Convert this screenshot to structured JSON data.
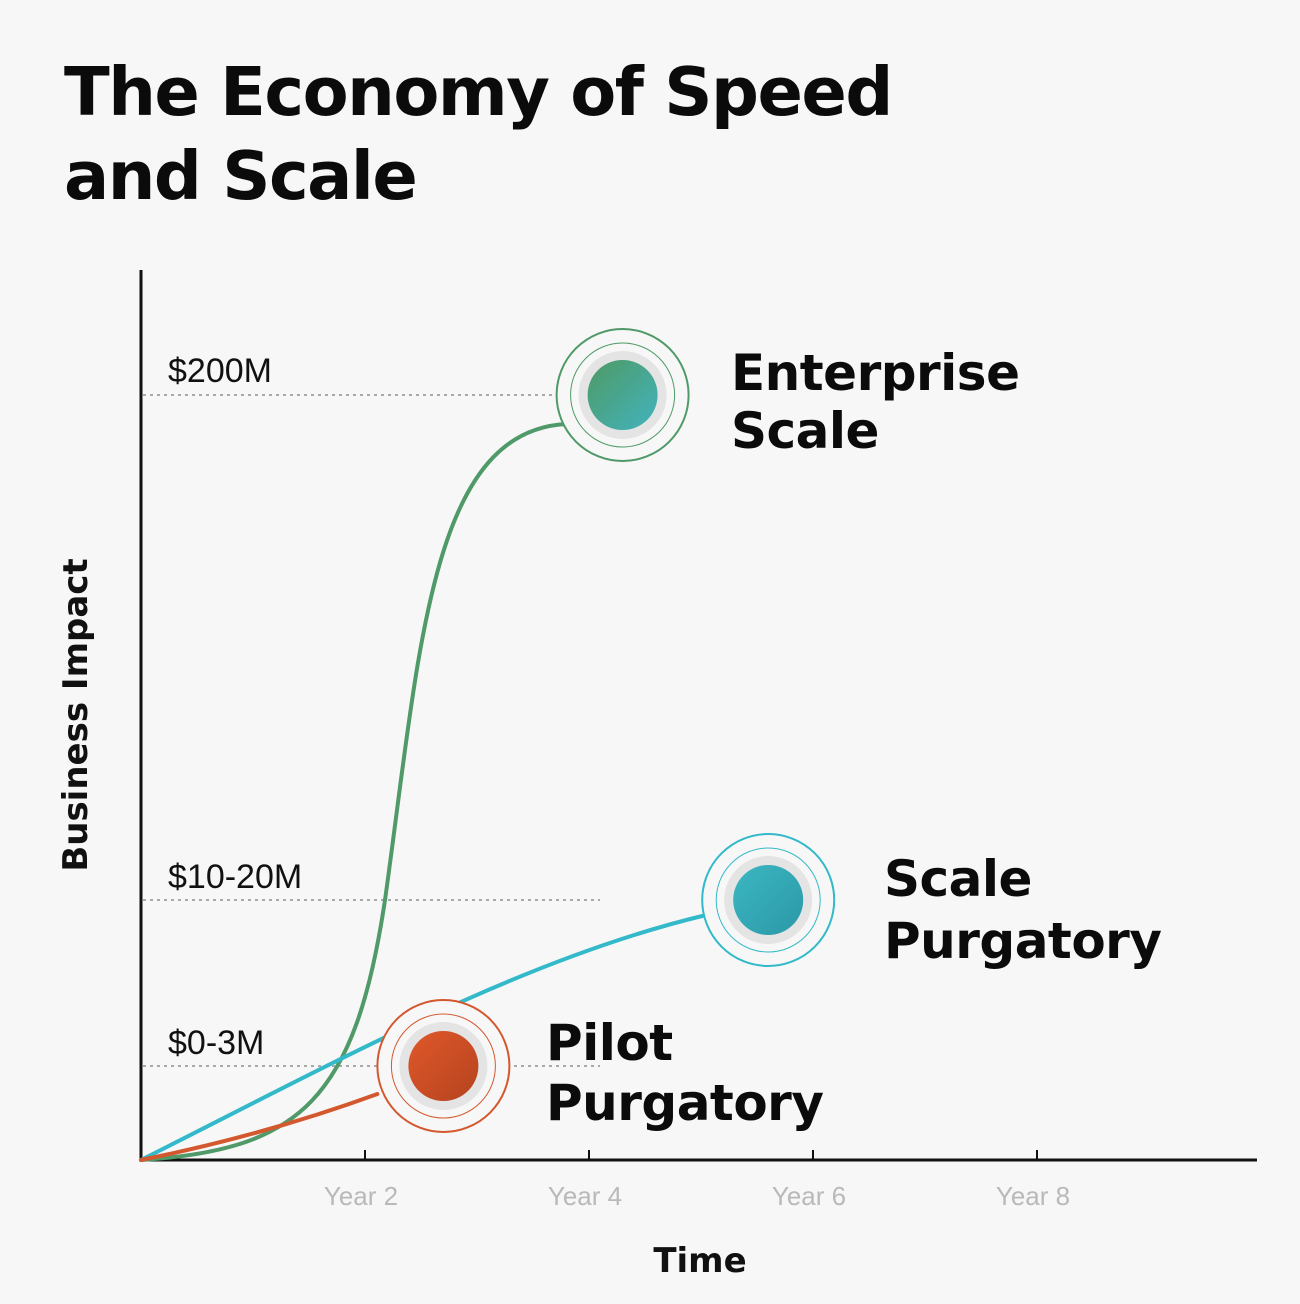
{
  "chart_data": {
    "type": "line",
    "title_lines": [
      "The Economy of Speed",
      "and Scale"
    ],
    "xlabel": "Time",
    "ylabel": "Business Impact",
    "x_ticks": [
      "Year 2",
      "Year 4",
      "Year 6",
      "Year 8"
    ],
    "y_ticks": [
      "$0-3M",
      "$10-20M",
      "$200M"
    ],
    "grid": false,
    "series": [
      {
        "label_lines": [
          "Enterprise",
          "Scale"
        ],
        "color": "#4f9a68",
        "ring_color": "#4f9a68",
        "dot_gradient": [
          "#4e9a63",
          "#42b3bf"
        ],
        "end_year": 4.3,
        "end_level": "$200M"
      },
      {
        "label_lines": [
          "Scale",
          "Purgatory"
        ],
        "color": "#33b9c9",
        "ring_color": "#33b9c9",
        "dot_gradient": [
          "#3cb7c2",
          "#2b98a8"
        ],
        "end_year": 5.6,
        "end_level": "$10-20M"
      },
      {
        "label_lines": [
          "Pilot",
          "Purgatory"
        ],
        "color": "#d4582e",
        "ring_color": "#d4582e",
        "dot_gradient": [
          "#e0582a",
          "#b5431f"
        ],
        "end_year": 2.7,
        "end_level": "$0-3M"
      }
    ]
  }
}
